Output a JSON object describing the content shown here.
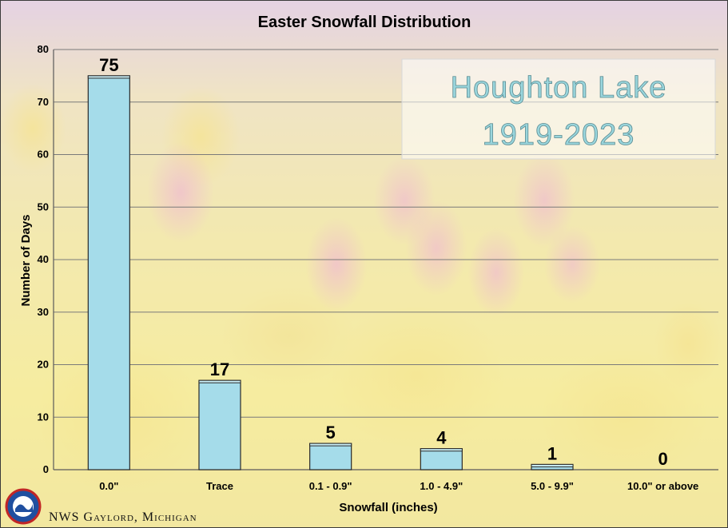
{
  "chart_data": {
    "type": "bar",
    "title": "Easter Snowfall Distribution",
    "xlabel": "Snowfall (inches)",
    "ylabel": "Number of Days",
    "categories": [
      "0.0\"",
      "Trace",
      "0.1 - 0.9\"",
      "1.0 - 4.9\"",
      "5.0 - 9.9\"",
      "10.0\" or above"
    ],
    "values": [
      75,
      17,
      5,
      4,
      1,
      0
    ],
    "data_labels": [
      "75",
      "17",
      "5",
      "4",
      "1",
      "0"
    ],
    "ylim": [
      0,
      80
    ],
    "yticks": [
      "0",
      "10",
      "20",
      "30",
      "40",
      "50",
      "60",
      "70",
      "80"
    ],
    "grid": true,
    "bar_color": "#a5dcea",
    "annotation": [
      "Houghton Lake",
      "1919-2023"
    ],
    "annotation_color": "#9ad6dd"
  },
  "credit": {
    "text": "NWS Gaylord, Michigan",
    "logo": "noaa-nws-logo-icon"
  }
}
